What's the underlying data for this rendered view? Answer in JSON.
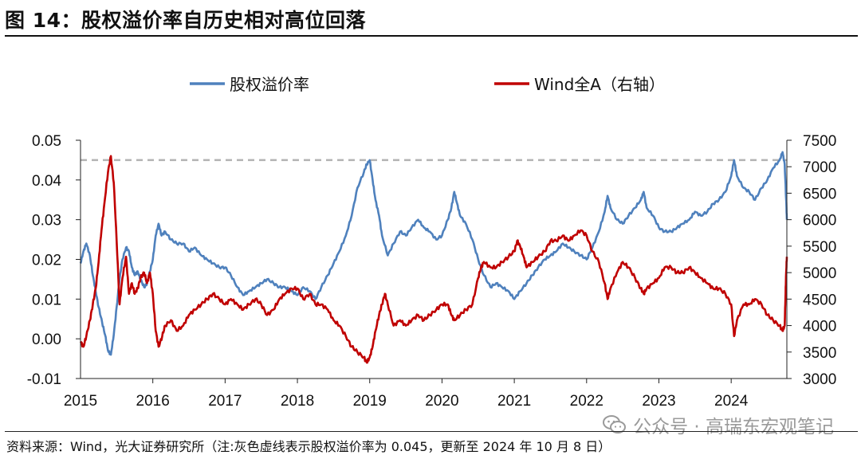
{
  "figure": {
    "title": "图 14：股权溢价率自历史相对高位回落",
    "source": "资料来源：Wind，光大证券研究所（注:灰色虚线表示股权溢价率为 0.045，更新至 2024 年 10 月 8 日）",
    "watermark": "公众号 · 高瑞东宏观笔记",
    "watermark_icon": "wechat-icon"
  },
  "chart_data": {
    "type": "line",
    "x_ticks": [
      "2015",
      "2016",
      "2017",
      "2018",
      "2019",
      "2020",
      "2021",
      "2022",
      "2023",
      "2024"
    ],
    "x_range": [
      2015.0,
      2024.77
    ],
    "y_left": {
      "ticks": [
        "0.05",
        "0.04",
        "0.03",
        "0.02",
        "0.01",
        "0.00",
        "-0.01"
      ],
      "range": [
        -0.01,
        0.05
      ]
    },
    "y_right": {
      "ticks": [
        "7500",
        "7000",
        "6500",
        "6000",
        "5500",
        "5000",
        "4500",
        "4000",
        "3500",
        "3000"
      ],
      "range": [
        3000,
        7500
      ]
    },
    "reference_line": {
      "value": 0.045,
      "axis": "left",
      "style": "dashed",
      "color": "#b3b3b3"
    },
    "legend_position": "top",
    "series": [
      {
        "name": "股权溢价率",
        "axis": "left",
        "color": "#4f81bd",
        "points": [
          [
            2015.0,
            0.019
          ],
          [
            2015.04,
            0.022
          ],
          [
            2015.08,
            0.024
          ],
          [
            2015.13,
            0.021
          ],
          [
            2015.17,
            0.016
          ],
          [
            2015.21,
            0.012
          ],
          [
            2015.25,
            0.008
          ],
          [
            2015.3,
            0.004
          ],
          [
            2015.34,
            0.001
          ],
          [
            2015.38,
            -0.003
          ],
          [
            2015.42,
            -0.004
          ],
          [
            2015.46,
            0.001
          ],
          [
            2015.5,
            0.008
          ],
          [
            2015.54,
            0.015
          ],
          [
            2015.58,
            0.02
          ],
          [
            2015.63,
            0.023
          ],
          [
            2015.67,
            0.022
          ],
          [
            2015.71,
            0.018
          ],
          [
            2015.75,
            0.016
          ],
          [
            2015.79,
            0.017
          ],
          [
            2015.83,
            0.015
          ],
          [
            2015.88,
            0.013
          ],
          [
            2015.92,
            0.014
          ],
          [
            2015.96,
            0.017
          ],
          [
            2016.0,
            0.02
          ],
          [
            2016.04,
            0.026
          ],
          [
            2016.08,
            0.029
          ],
          [
            2016.12,
            0.026
          ],
          [
            2016.17,
            0.027
          ],
          [
            2016.25,
            0.025
          ],
          [
            2016.33,
            0.024
          ],
          [
            2016.42,
            0.024
          ],
          [
            2016.5,
            0.022
          ],
          [
            2016.58,
            0.023
          ],
          [
            2016.67,
            0.021
          ],
          [
            2016.75,
            0.02
          ],
          [
            2016.83,
            0.019
          ],
          [
            2016.92,
            0.018
          ],
          [
            2017.0,
            0.018
          ],
          [
            2017.08,
            0.016
          ],
          [
            2017.17,
            0.013
          ],
          [
            2017.25,
            0.011
          ],
          [
            2017.33,
            0.012
          ],
          [
            2017.42,
            0.013
          ],
          [
            2017.5,
            0.014
          ],
          [
            2017.58,
            0.015
          ],
          [
            2017.67,
            0.014
          ],
          [
            2017.75,
            0.013
          ],
          [
            2017.83,
            0.013
          ],
          [
            2017.92,
            0.012
          ],
          [
            2018.0,
            0.011
          ],
          [
            2018.08,
            0.013
          ],
          [
            2018.17,
            0.012
          ],
          [
            2018.25,
            0.01
          ],
          [
            2018.33,
            0.013
          ],
          [
            2018.42,
            0.016
          ],
          [
            2018.5,
            0.019
          ],
          [
            2018.58,
            0.022
          ],
          [
            2018.67,
            0.026
          ],
          [
            2018.75,
            0.031
          ],
          [
            2018.83,
            0.038
          ],
          [
            2018.92,
            0.042
          ],
          [
            2018.96,
            0.044
          ],
          [
            2019.0,
            0.045
          ],
          [
            2019.04,
            0.04
          ],
          [
            2019.08,
            0.035
          ],
          [
            2019.13,
            0.031
          ],
          [
            2019.17,
            0.026
          ],
          [
            2019.25,
            0.021
          ],
          [
            2019.33,
            0.024
          ],
          [
            2019.42,
            0.027
          ],
          [
            2019.5,
            0.026
          ],
          [
            2019.58,
            0.028
          ],
          [
            2019.67,
            0.03
          ],
          [
            2019.75,
            0.028
          ],
          [
            2019.83,
            0.027
          ],
          [
            2019.92,
            0.025
          ],
          [
            2020.0,
            0.026
          ],
          [
            2020.08,
            0.03
          ],
          [
            2020.13,
            0.033
          ],
          [
            2020.17,
            0.037
          ],
          [
            2020.21,
            0.034
          ],
          [
            2020.25,
            0.031
          ],
          [
            2020.33,
            0.029
          ],
          [
            2020.42,
            0.025
          ],
          [
            2020.5,
            0.02
          ],
          [
            2020.58,
            0.016
          ],
          [
            2020.67,
            0.013
          ],
          [
            2020.75,
            0.014
          ],
          [
            2020.83,
            0.013
          ],
          [
            2020.92,
            0.012
          ],
          [
            2021.0,
            0.01
          ],
          [
            2021.08,
            0.012
          ],
          [
            2021.17,
            0.014
          ],
          [
            2021.25,
            0.016
          ],
          [
            2021.33,
            0.018
          ],
          [
            2021.42,
            0.02
          ],
          [
            2021.5,
            0.021
          ],
          [
            2021.58,
            0.022
          ],
          [
            2021.67,
            0.024
          ],
          [
            2021.75,
            0.023
          ],
          [
            2021.83,
            0.022
          ],
          [
            2021.92,
            0.021
          ],
          [
            2022.0,
            0.02
          ],
          [
            2022.08,
            0.023
          ],
          [
            2022.17,
            0.027
          ],
          [
            2022.25,
            0.032
          ],
          [
            2022.29,
            0.036
          ],
          [
            2022.33,
            0.033
          ],
          [
            2022.42,
            0.03
          ],
          [
            2022.5,
            0.029
          ],
          [
            2022.58,
            0.031
          ],
          [
            2022.67,
            0.033
          ],
          [
            2022.75,
            0.035
          ],
          [
            2022.79,
            0.037
          ],
          [
            2022.83,
            0.033
          ],
          [
            2022.92,
            0.031
          ],
          [
            2023.0,
            0.028
          ],
          [
            2023.08,
            0.027
          ],
          [
            2023.17,
            0.027
          ],
          [
            2023.25,
            0.028
          ],
          [
            2023.33,
            0.029
          ],
          [
            2023.42,
            0.03
          ],
          [
            2023.5,
            0.032
          ],
          [
            2023.58,
            0.031
          ],
          [
            2023.67,
            0.032
          ],
          [
            2023.75,
            0.034
          ],
          [
            2023.83,
            0.035
          ],
          [
            2023.92,
            0.037
          ],
          [
            2024.0,
            0.041
          ],
          [
            2024.04,
            0.045
          ],
          [
            2024.08,
            0.041
          ],
          [
            2024.17,
            0.038
          ],
          [
            2024.25,
            0.037
          ],
          [
            2024.33,
            0.035
          ],
          [
            2024.42,
            0.038
          ],
          [
            2024.5,
            0.04
          ],
          [
            2024.58,
            0.043
          ],
          [
            2024.67,
            0.045
          ],
          [
            2024.71,
            0.047
          ],
          [
            2024.74,
            0.044
          ],
          [
            2024.76,
            0.035
          ],
          [
            2024.77,
            0.03
          ]
        ]
      },
      {
        "name": "Wind全A（右轴）",
        "axis": "right",
        "color": "#c00000",
        "points": [
          [
            2015.0,
            3700
          ],
          [
            2015.04,
            3600
          ],
          [
            2015.08,
            3800
          ],
          [
            2015.13,
            4100
          ],
          [
            2015.17,
            4400
          ],
          [
            2015.21,
            4700
          ],
          [
            2015.25,
            5200
          ],
          [
            2015.29,
            5800
          ],
          [
            2015.33,
            6300
          ],
          [
            2015.38,
            6900
          ],
          [
            2015.42,
            7200
          ],
          [
            2015.46,
            6700
          ],
          [
            2015.5,
            5600
          ],
          [
            2015.54,
            4400
          ],
          [
            2015.58,
            4900
          ],
          [
            2015.63,
            5300
          ],
          [
            2015.67,
            4600
          ],
          [
            2015.71,
            4800
          ],
          [
            2015.75,
            4600
          ],
          [
            2015.79,
            4700
          ],
          [
            2015.83,
            4900
          ],
          [
            2015.88,
            5000
          ],
          [
            2015.92,
            4800
          ],
          [
            2015.96,
            5000
          ],
          [
            2016.0,
            4600
          ],
          [
            2016.04,
            3900
          ],
          [
            2016.08,
            3600
          ],
          [
            2016.13,
            3800
          ],
          [
            2016.17,
            4000
          ],
          [
            2016.25,
            4100
          ],
          [
            2016.33,
            3900
          ],
          [
            2016.42,
            4000
          ],
          [
            2016.5,
            4200
          ],
          [
            2016.58,
            4300
          ],
          [
            2016.67,
            4400
          ],
          [
            2016.75,
            4500
          ],
          [
            2016.83,
            4600
          ],
          [
            2016.92,
            4500
          ],
          [
            2017.0,
            4400
          ],
          [
            2017.08,
            4500
          ],
          [
            2017.17,
            4400
          ],
          [
            2017.25,
            4300
          ],
          [
            2017.33,
            4400
          ],
          [
            2017.42,
            4500
          ],
          [
            2017.5,
            4400
          ],
          [
            2017.58,
            4200
          ],
          [
            2017.67,
            4300
          ],
          [
            2017.75,
            4500
          ],
          [
            2017.83,
            4600
          ],
          [
            2017.92,
            4700
          ],
          [
            2018.0,
            4700
          ],
          [
            2018.08,
            4500
          ],
          [
            2018.17,
            4600
          ],
          [
            2018.25,
            4400
          ],
          [
            2018.33,
            4400
          ],
          [
            2018.42,
            4300
          ],
          [
            2018.5,
            4100
          ],
          [
            2018.58,
            4000
          ],
          [
            2018.67,
            3800
          ],
          [
            2018.75,
            3600
          ],
          [
            2018.83,
            3500
          ],
          [
            2018.92,
            3400
          ],
          [
            2018.96,
            3300
          ],
          [
            2019.0,
            3400
          ],
          [
            2019.04,
            3600
          ],
          [
            2019.08,
            3900
          ],
          [
            2019.13,
            4200
          ],
          [
            2019.17,
            4400
          ],
          [
            2019.21,
            4600
          ],
          [
            2019.25,
            4400
          ],
          [
            2019.33,
            4000
          ],
          [
            2019.42,
            4100
          ],
          [
            2019.5,
            4000
          ],
          [
            2019.58,
            4100
          ],
          [
            2019.67,
            4200
          ],
          [
            2019.75,
            4100
          ],
          [
            2019.83,
            4200
          ],
          [
            2019.92,
            4300
          ],
          [
            2020.0,
            4400
          ],
          [
            2020.08,
            4400
          ],
          [
            2020.13,
            4200
          ],
          [
            2020.17,
            4100
          ],
          [
            2020.25,
            4200
          ],
          [
            2020.33,
            4300
          ],
          [
            2020.42,
            4400
          ],
          [
            2020.5,
            4900
          ],
          [
            2020.54,
            5100
          ],
          [
            2020.58,
            5200
          ],
          [
            2020.67,
            5100
          ],
          [
            2020.75,
            5100
          ],
          [
            2020.83,
            5200
          ],
          [
            2020.92,
            5300
          ],
          [
            2021.0,
            5400
          ],
          [
            2021.04,
            5600
          ],
          [
            2021.08,
            5500
          ],
          [
            2021.13,
            5300
          ],
          [
            2021.17,
            5100
          ],
          [
            2021.25,
            5200
          ],
          [
            2021.33,
            5300
          ],
          [
            2021.42,
            5400
          ],
          [
            2021.5,
            5600
          ],
          [
            2021.58,
            5600
          ],
          [
            2021.67,
            5700
          ],
          [
            2021.75,
            5600
          ],
          [
            2021.83,
            5700
          ],
          [
            2021.92,
            5800
          ],
          [
            2022.0,
            5700
          ],
          [
            2022.08,
            5400
          ],
          [
            2022.17,
            5200
          ],
          [
            2022.25,
            4800
          ],
          [
            2022.29,
            4500
          ],
          [
            2022.33,
            4700
          ],
          [
            2022.42,
            5000
          ],
          [
            2022.5,
            5200
          ],
          [
            2022.58,
            5100
          ],
          [
            2022.67,
            4900
          ],
          [
            2022.75,
            4700
          ],
          [
            2022.79,
            4600
          ],
          [
            2022.83,
            4700
          ],
          [
            2022.92,
            4800
          ],
          [
            2023.0,
            4900
          ],
          [
            2023.08,
            5100
          ],
          [
            2023.17,
            5100
          ],
          [
            2023.25,
            5000
          ],
          [
            2023.33,
            5000
          ],
          [
            2023.42,
            5100
          ],
          [
            2023.5,
            5000
          ],
          [
            2023.58,
            4900
          ],
          [
            2023.67,
            4800
          ],
          [
            2023.75,
            4700
          ],
          [
            2023.83,
            4700
          ],
          [
            2023.92,
            4600
          ],
          [
            2024.0,
            4400
          ],
          [
            2024.04,
            3800
          ],
          [
            2024.08,
            4100
          ],
          [
            2024.17,
            4400
          ],
          [
            2024.25,
            4400
          ],
          [
            2024.33,
            4500
          ],
          [
            2024.42,
            4400
          ],
          [
            2024.5,
            4200
          ],
          [
            2024.58,
            4100
          ],
          [
            2024.67,
            4000
          ],
          [
            2024.71,
            3900
          ],
          [
            2024.74,
            4000
          ],
          [
            2024.75,
            4500
          ],
          [
            2024.76,
            5000
          ],
          [
            2024.77,
            5300
          ]
        ]
      }
    ]
  }
}
